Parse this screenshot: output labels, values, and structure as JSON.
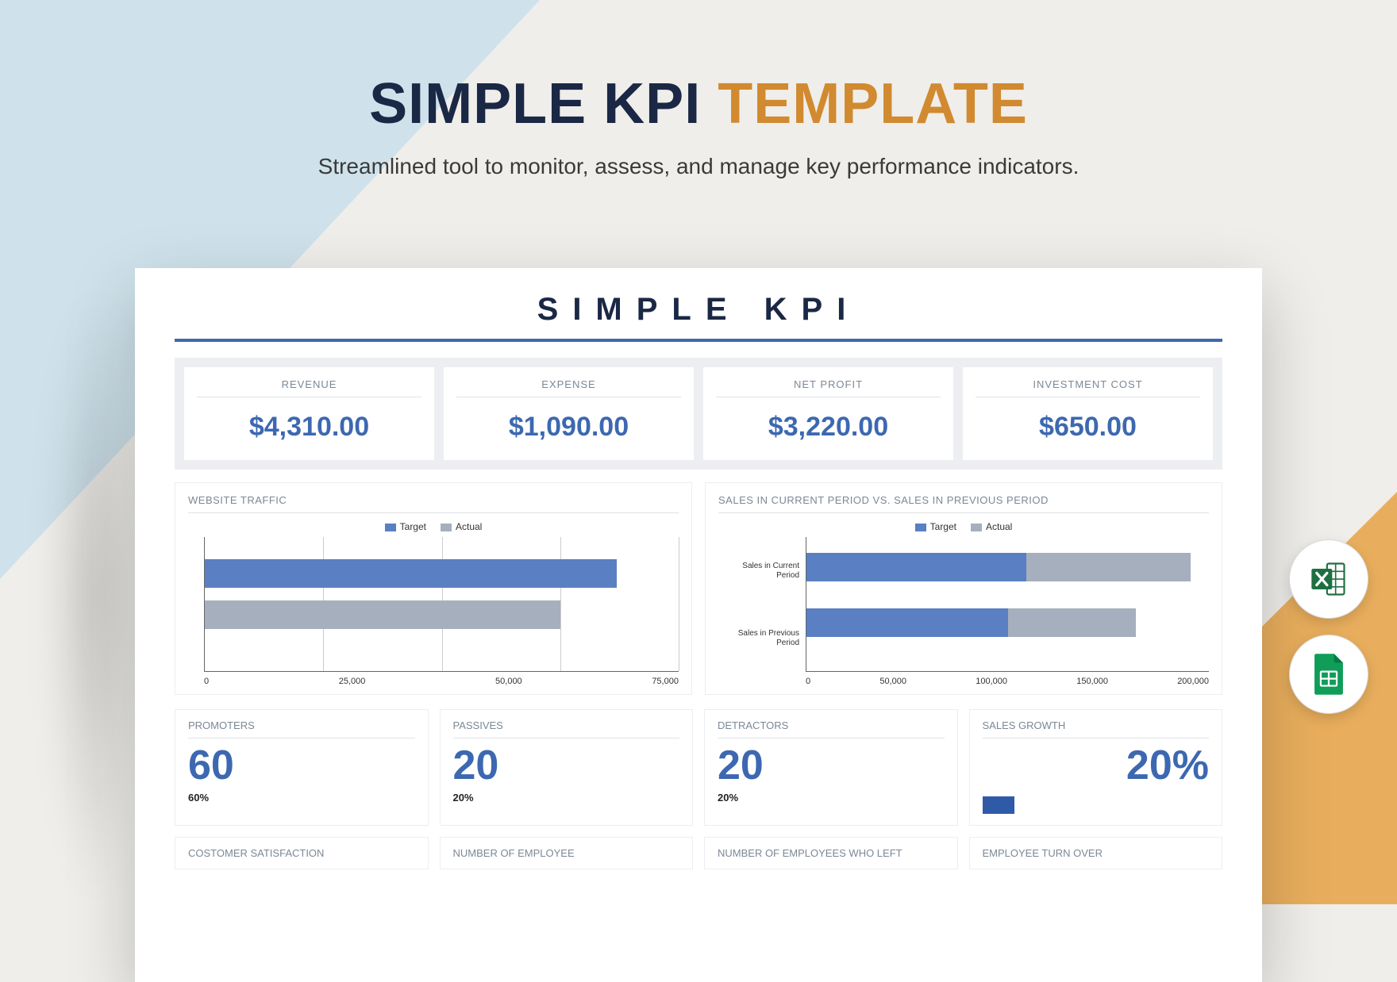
{
  "hero": {
    "title_part1": "SIMPLE KPI",
    "title_part2": "TEMPLATE",
    "subtitle": "Streamlined tool to monitor, assess, and manage key performance indicators."
  },
  "colors": {
    "navy": "#1a2845",
    "orange": "#d18a2f",
    "blue": "#3d68b1",
    "bar_target": "#5a7fc2",
    "bar_actual": "#a6afbd",
    "bg_orange": "#e9ae5d",
    "bg_blue": "#cfe2eb",
    "text_muted": "#7b8896"
  },
  "sheet": {
    "title": "SIMPLE KPI",
    "metrics": [
      {
        "label": "REVENUE",
        "value": "$4,310.00"
      },
      {
        "label": "EXPENSE",
        "value": "$1,090.00"
      },
      {
        "label": "NET PROFIT",
        "value": "$3,220.00"
      },
      {
        "label": "INVESTMENT COST",
        "value": "$650.00"
      }
    ],
    "website_traffic": {
      "title": "WEBSITE TRAFFIC",
      "legend": {
        "target": "Target",
        "actual": "Actual"
      },
      "type": "bar-horizontal",
      "x_ticks": [
        "0",
        "25,000",
        "50,000",
        "75,000"
      ],
      "x_max": 100000,
      "grid_at": [
        25000,
        50000,
        75000,
        100000
      ],
      "bars": [
        {
          "name": "target",
          "value": 87000,
          "color": "#5a7fc2",
          "y": 28
        },
        {
          "name": "actual",
          "value": 75000,
          "color": "#a6afbd",
          "y": 80
        }
      ]
    },
    "sales_chart": {
      "title": "SALES IN CURRENT PERIOD VS. SALES IN PREVIOUS PERIOD",
      "legend": {
        "target": "Target",
        "actual": "Actual"
      },
      "type": "stacked-bar-horizontal",
      "x_ticks": [
        "0",
        "50,000",
        "100,000",
        "150,000",
        "200,000"
      ],
      "x_max": 220000,
      "categories": [
        {
          "label": "Sales in Current Period",
          "target": 120000,
          "actual": 210000,
          "y": 20
        },
        {
          "label": "Sales in Previous Period",
          "target": 110000,
          "actual": 180000,
          "y": 90
        }
      ],
      "colors": {
        "target": "#5a7fc2",
        "actual": "#a6afbd"
      }
    },
    "kpis": [
      {
        "label": "PROMOTERS",
        "value": "60",
        "sub": "60%"
      },
      {
        "label": "PASSIVES",
        "value": "20",
        "sub": "20%"
      },
      {
        "label": "DETRACTORS",
        "value": "20",
        "sub": "20%"
      },
      {
        "label": "SALES GROWTH",
        "value": "20%",
        "sub": "",
        "right": true,
        "bar": true
      }
    ],
    "bottom_labels": [
      "COSTOMER SATISFACTION",
      "NUMBER OF EMPLOYEE",
      "NUMBER OF EMPLOYEES WHO LEFT",
      "EMPLOYEE TURN OVER"
    ]
  },
  "icons": {
    "excel": "excel-icon",
    "sheets": "sheets-icon"
  }
}
